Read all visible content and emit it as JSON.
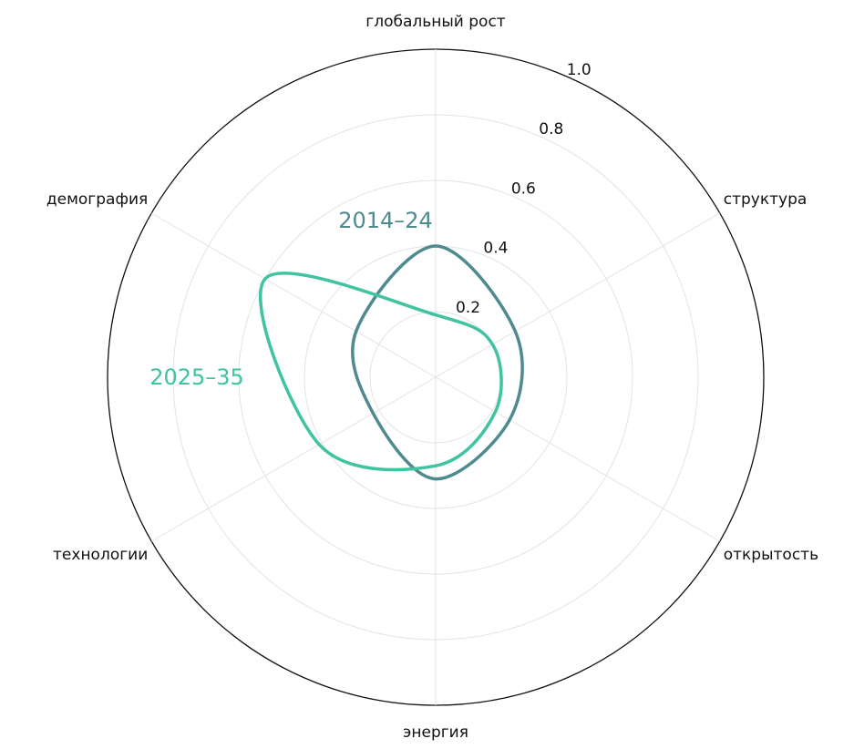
{
  "chart_data": {
    "type": "radar",
    "categories": [
      "глобальный рост",
      "структура",
      "открытость",
      "энергия",
      "технологии",
      "демография"
    ],
    "series": [
      {
        "name": "2014–24",
        "color": "#4e8a8f",
        "values": [
          0.4,
          0.28,
          0.26,
          0.31,
          0.22,
          0.28
        ]
      },
      {
        "name": "2025–35",
        "color": "#3fc3a0",
        "values": [
          0.19,
          0.2,
          0.21,
          0.27,
          0.41,
          0.6
        ]
      }
    ],
    "rlim": [
      0,
      1
    ],
    "rticks": [
      0.2,
      0.4,
      0.6,
      0.8,
      {
        "value": 1.0,
        "label": "1.0"
      }
    ],
    "grid": true
  }
}
